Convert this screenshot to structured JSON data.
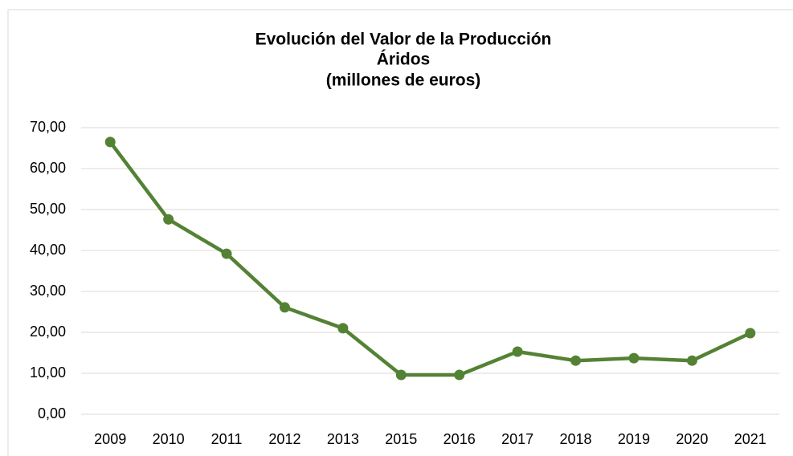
{
  "chart_data": {
    "type": "line",
    "title": [
      "Evolución del Valor de la Producción",
      "Áridos",
      "(millones de euros)"
    ],
    "categories": [
      "2009",
      "2010",
      "2011",
      "2012",
      "2013",
      "2015",
      "2016",
      "2017",
      "2018",
      "2019",
      "2020",
      "2021"
    ],
    "series": [
      {
        "name": "Valor de la Producción",
        "color": "#548235",
        "values": [
          66.5,
          47.6,
          39.2,
          26.1,
          21.0,
          9.6,
          9.6,
          15.3,
          13.1,
          13.7,
          13.1,
          19.8
        ]
      }
    ],
    "ylim": [
      0,
      70
    ],
    "yticks": [
      {
        "value": 0,
        "label": "0,00"
      },
      {
        "value": 10,
        "label": "10,00"
      },
      {
        "value": 20,
        "label": "20,00"
      },
      {
        "value": 30,
        "label": "30,00"
      },
      {
        "value": 40,
        "label": "40,00"
      },
      {
        "value": 50,
        "label": "50,00"
      },
      {
        "value": 60,
        "label": "60,00"
      },
      {
        "value": 70,
        "label": "70,00"
      }
    ],
    "grid": true
  }
}
